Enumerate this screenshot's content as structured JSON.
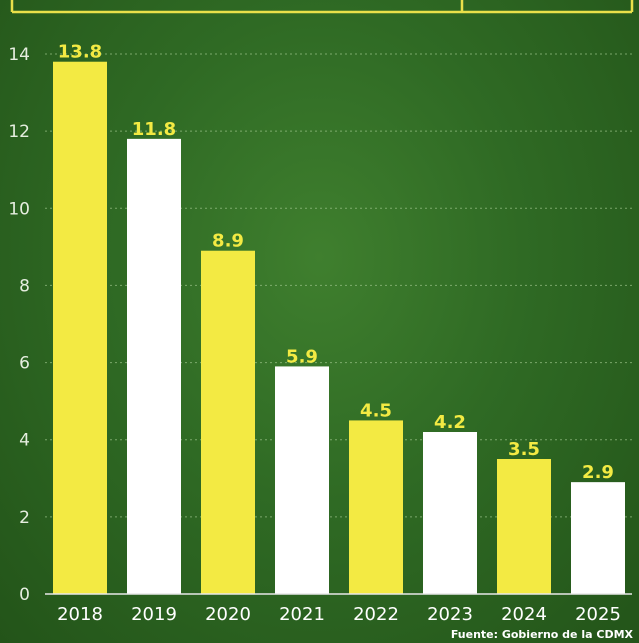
{
  "chart_data": {
    "type": "bar",
    "categories": [
      "2018",
      "2019",
      "2020",
      "2021",
      "2022",
      "2023",
      "2024",
      "2025"
    ],
    "values": [
      13.8,
      11.8,
      8.9,
      5.9,
      4.5,
      4.2,
      3.5,
      2.9
    ],
    "value_labels": [
      "13.8",
      "11.8",
      "8.9",
      "5.9",
      "4.5",
      "4.2",
      "3.5",
      "2.9"
    ],
    "bar_colors": [
      "#f3ea43",
      "#ffffff",
      "#f3ea43",
      "#ffffff",
      "#f3ea43",
      "#ffffff",
      "#f3ea43",
      "#ffffff"
    ],
    "label_color": "#f3ea43",
    "y_ticks": [
      "0",
      "2",
      "4",
      "6",
      "8",
      "10",
      "12",
      "14"
    ],
    "ylim": [
      0,
      14
    ],
    "grid": true,
    "title": "",
    "xlabel": "",
    "ylabel": ""
  },
  "source_note": "Fuente: Gobierno de la CDMX"
}
